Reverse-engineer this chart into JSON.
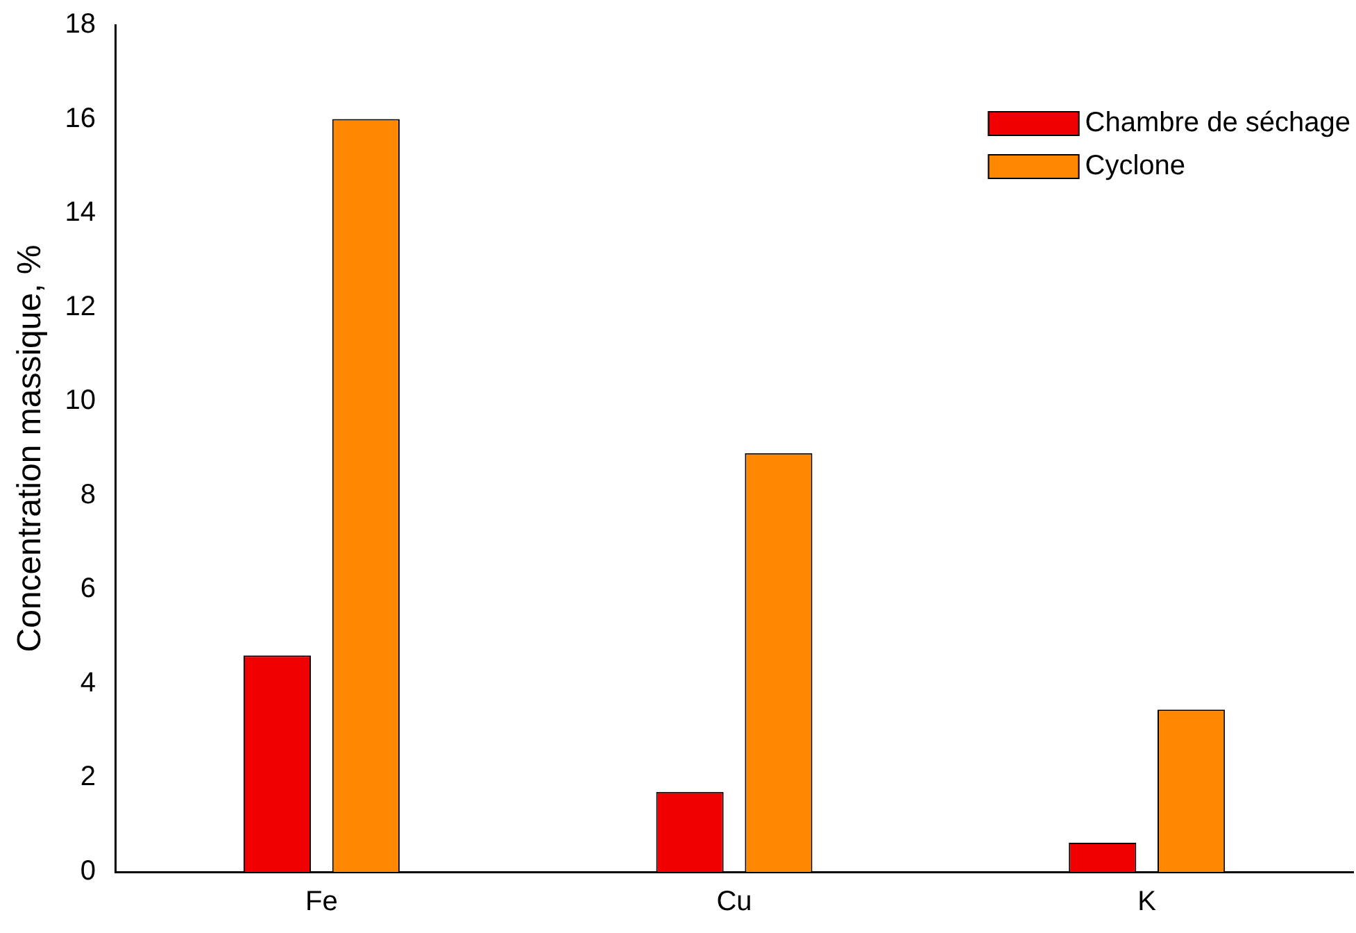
{
  "chart_data": {
    "type": "bar",
    "ylabel": "Concentration massique, %",
    "categories": [
      "Fe",
      "Cu",
      "K"
    ],
    "series": [
      {
        "name": "Chambre de séchage",
        "color": "#f00000",
        "values": [
          4.6,
          1.7,
          0.62
        ]
      },
      {
        "name": "Cyclone",
        "color": "#ff8800",
        "values": [
          16,
          8.9,
          3.45
        ]
      }
    ],
    "ylim": [
      0,
      18
    ],
    "yticks": [
      0,
      2,
      4,
      6,
      8,
      10,
      12,
      14,
      16,
      18
    ],
    "grid": false,
    "legend": "top right"
  }
}
